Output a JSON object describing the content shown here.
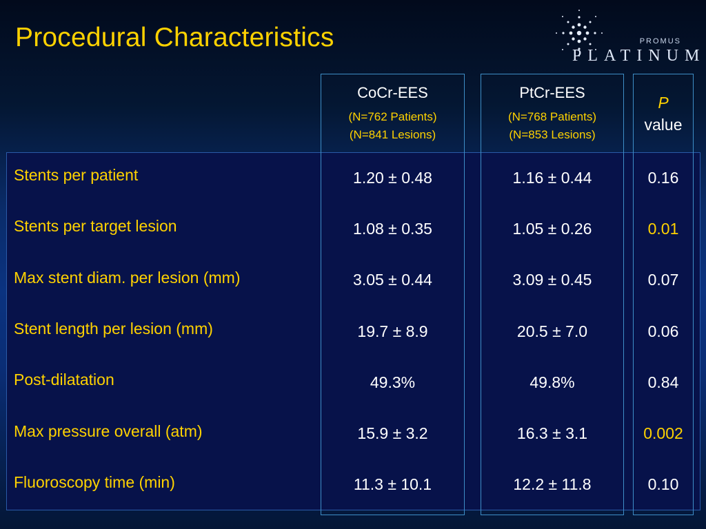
{
  "slide": {
    "title": "Procedural Characteristics"
  },
  "logo": {
    "line1": "PROMUS",
    "line2": "PLATINUM"
  },
  "columns": [
    {
      "name": "CoCr-EES",
      "patients": "(N=762 Patients)",
      "lesions": "(N=841 Lesions)"
    },
    {
      "name": "PtCr-EES",
      "patients": "(N=768 Patients)",
      "lesions": "(N=853 Lesions)"
    },
    {
      "name_italic": "P",
      "name_rest": "value"
    }
  ],
  "rows": [
    {
      "label": "Stents per patient",
      "cocr": "1.20 ± 0.48",
      "ptcr": "1.16 ± 0.44",
      "p": "0.16",
      "significant": false
    },
    {
      "label": "Stents per target lesion",
      "cocr": "1.08 ± 0.35",
      "ptcr": "1.05 ± 0.26",
      "p": "0.01",
      "significant": true
    },
    {
      "label": "Max stent diam. per lesion (mm)",
      "cocr": "3.05 ± 0.44",
      "ptcr": "3.09 ± 0.45",
      "p": "0.07",
      "significant": false
    },
    {
      "label": "Stent length per lesion (mm)",
      "cocr": "19.7 ± 8.9",
      "ptcr": "20.5 ± 7.0",
      "p": "0.06",
      "significant": false
    },
    {
      "label": "Post-dilatation",
      "cocr": "49.3%",
      "ptcr": "49.8%",
      "p": "0.84",
      "significant": false
    },
    {
      "label": "Max pressure overall (atm)",
      "cocr": "15.9 ± 3.2",
      "ptcr": "16.3 ± 3.1",
      "p": "0.002",
      "significant": true
    },
    {
      "label": "Fluoroscopy time (min)",
      "cocr": "11.3 ± 10.1",
      "ptcr": "12.2 ± 11.8",
      "p": "0.10",
      "significant": false
    }
  ],
  "colors": {
    "title": "#ffd200",
    "highlight": "#ffd200",
    "panel": "#07124a",
    "column_border": "#3e8fc8"
  }
}
